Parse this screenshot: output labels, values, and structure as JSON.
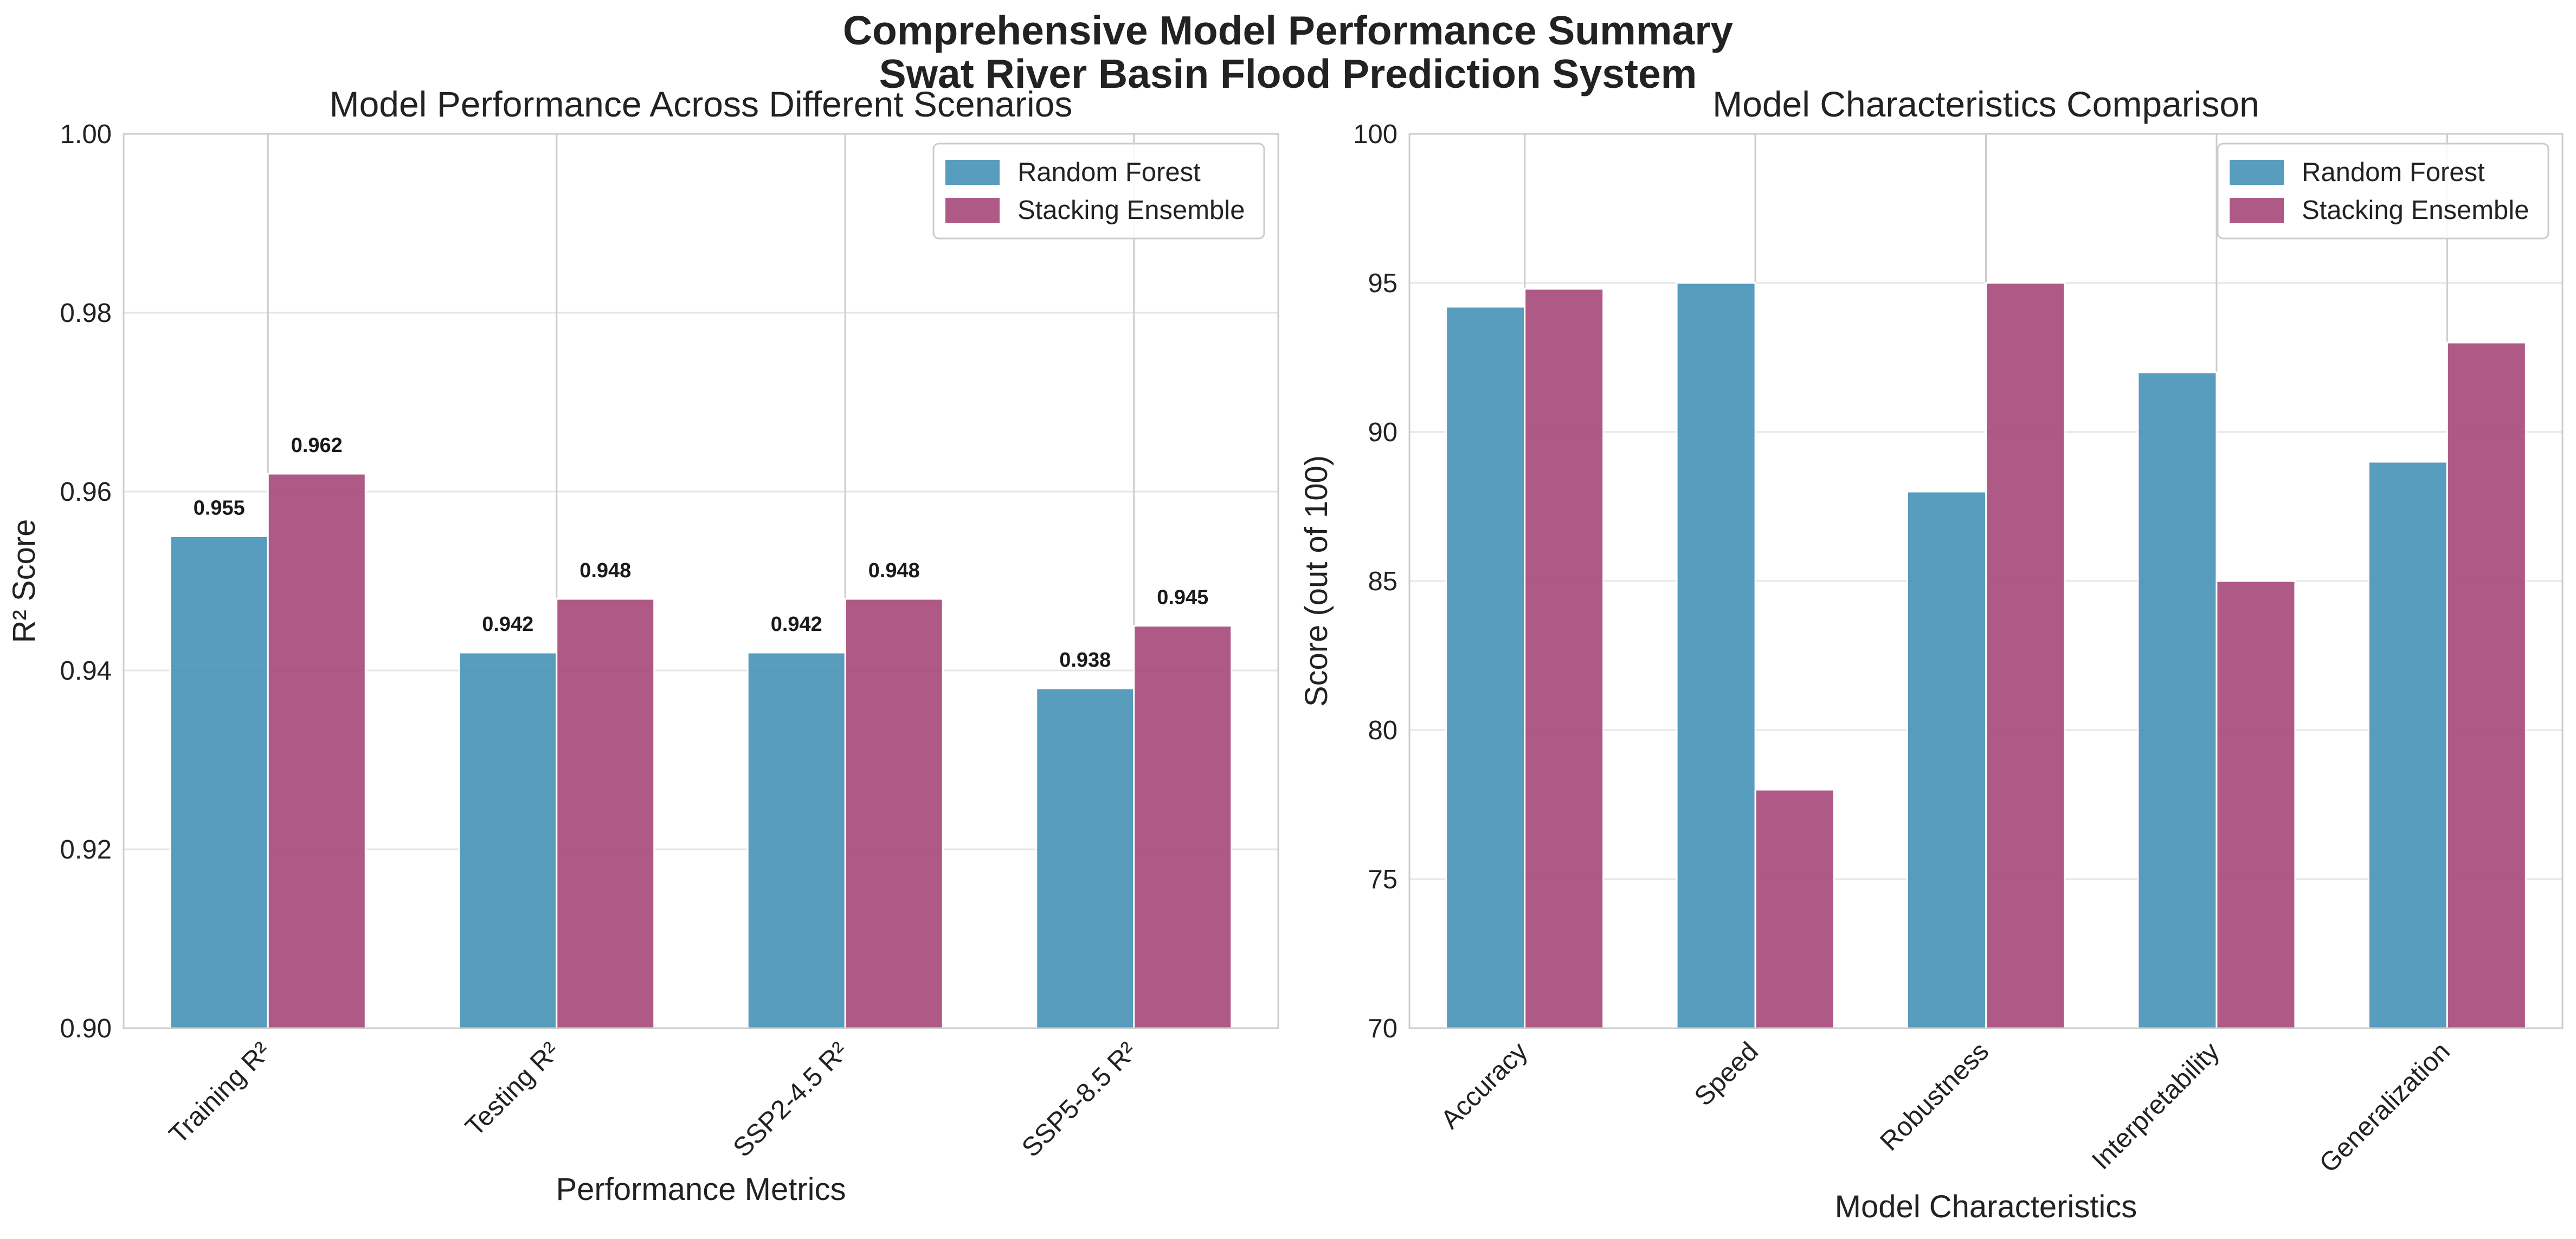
{
  "suptitle": {
    "line1": "Comprehensive Model Performance Summary",
    "line2": "Swat River Basin Flood Prediction System"
  },
  "colors": {
    "random_forest": "#4a94b8",
    "stacking_ensemble": "#a84c7c",
    "grid": "#e6e6e6",
    "vgrid": "#cccccc",
    "spine": "#cccccc"
  },
  "chart_data": [
    {
      "type": "bar",
      "title": "Model Performance Across Different Scenarios",
      "xlabel": "Performance Metrics",
      "ylabel": "R² Score",
      "categories": [
        "Training R²",
        "Testing R²",
        "SSP2-4.5 R²",
        "SSP5-8.5 R²"
      ],
      "series": [
        {
          "name": "Random Forest",
          "values": [
            0.955,
            0.942,
            0.942,
            0.938
          ]
        },
        {
          "name": "Stacking Ensemble",
          "values": [
            0.962,
            0.948,
            0.948,
            0.945
          ]
        }
      ],
      "data_labels": [
        [
          "0.955",
          "0.942",
          "0.942",
          "0.938"
        ],
        [
          "0.962",
          "0.948",
          "0.948",
          "0.945"
        ]
      ],
      "ylim": [
        0.9,
        1.0
      ],
      "yticks": [
        0.9,
        0.92,
        0.94,
        0.96,
        0.98,
        1.0
      ],
      "ytick_labels": [
        "0.90",
        "0.92",
        "0.94",
        "0.96",
        "0.98",
        "1.00"
      ],
      "grid": true,
      "legend_position": "top-right"
    },
    {
      "type": "bar",
      "title": "Model Characteristics Comparison",
      "xlabel": "Model Characteristics",
      "ylabel": "Score (out of 100)",
      "categories": [
        "Accuracy",
        "Speed",
        "Robustness",
        "Interpretability",
        "Generalization"
      ],
      "series": [
        {
          "name": "Random Forest",
          "values": [
            94.2,
            95,
            88,
            92,
            89
          ]
        },
        {
          "name": "Stacking Ensemble",
          "values": [
            94.8,
            78,
            95,
            85,
            93
          ]
        }
      ],
      "ylim": [
        70,
        100
      ],
      "yticks": [
        70,
        75,
        80,
        85,
        90,
        95,
        100
      ],
      "ytick_labels": [
        "70",
        "75",
        "80",
        "85",
        "90",
        "95",
        "100"
      ],
      "grid": true,
      "legend_position": "top-right"
    }
  ]
}
